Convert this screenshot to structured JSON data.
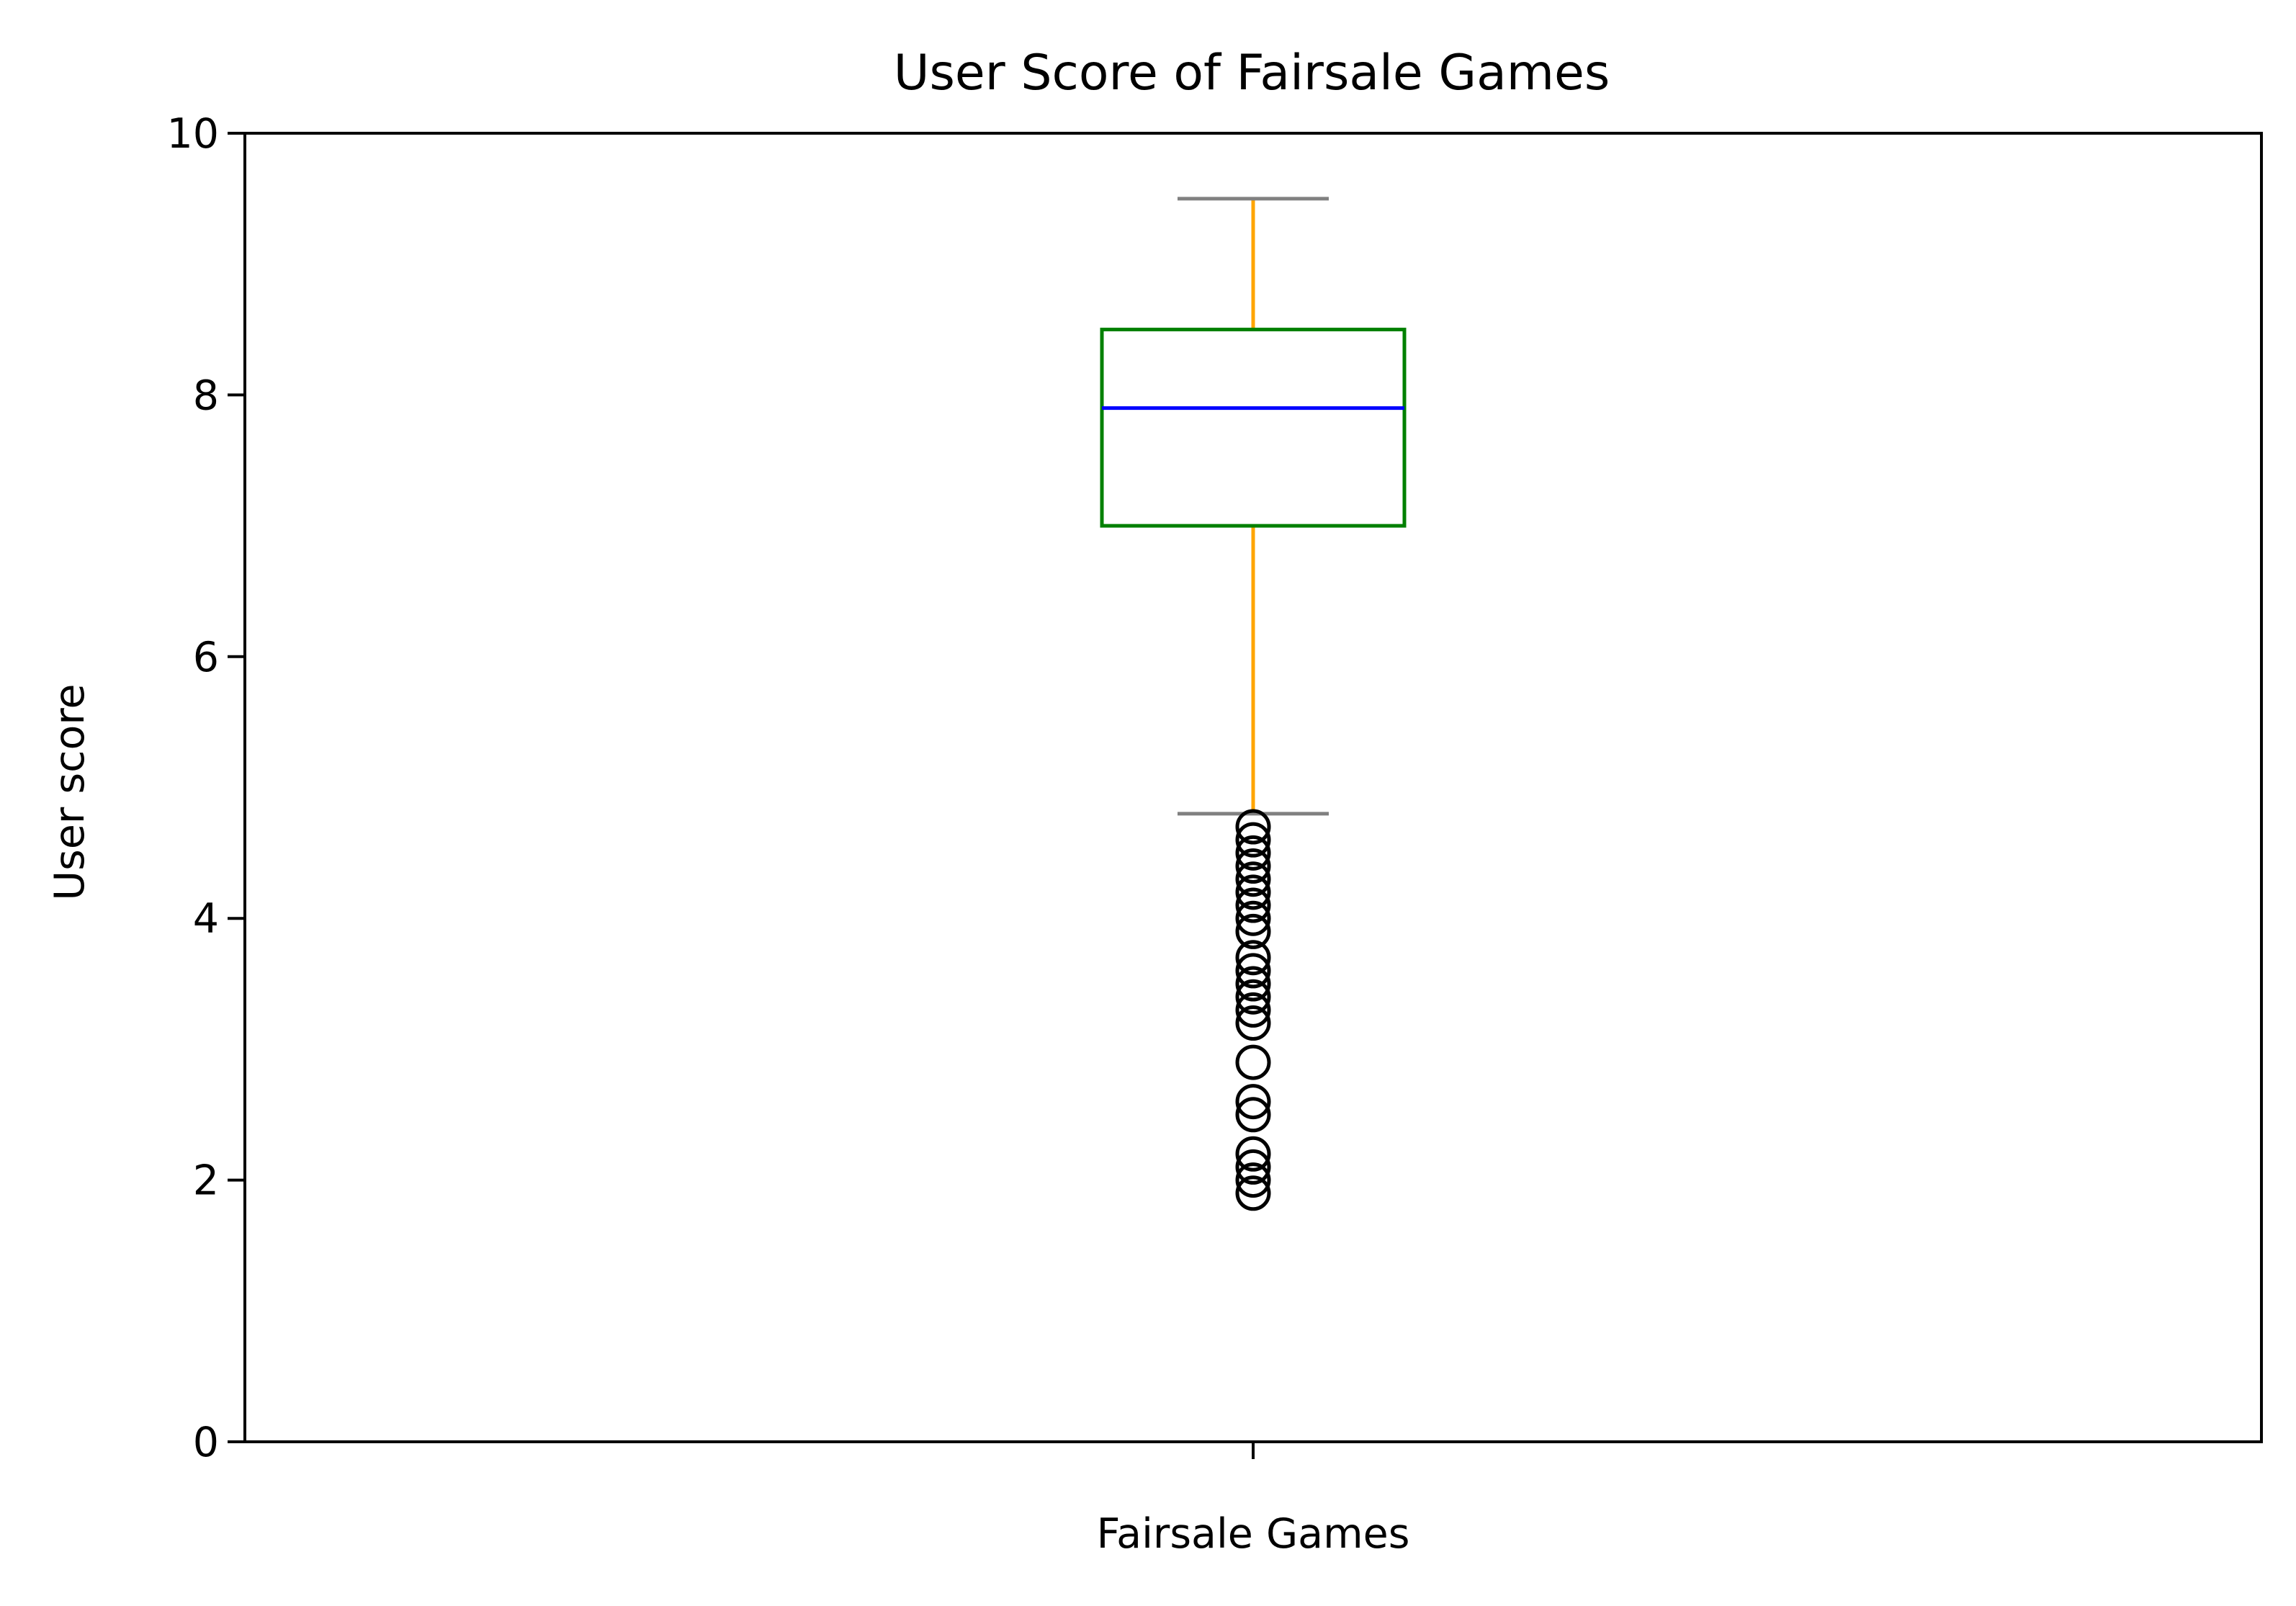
{
  "chart_data": {
    "type": "boxplot",
    "title": "User Score of Fairsale Games",
    "xlabel": "",
    "ylabel": "User score",
    "ylim": [
      0,
      10
    ],
    "yticks": [
      0,
      2,
      4,
      6,
      8,
      10
    ],
    "categories": [
      "Fairsale Games"
    ],
    "grid": false,
    "boxes": [
      {
        "category": "Fairsale Games",
        "whisker_low": 4.8,
        "q1": 7.0,
        "median": 7.9,
        "q3": 8.5,
        "whisker_high": 9.5,
        "outliers": [
          4.7,
          4.6,
          4.5,
          4.4,
          4.3,
          4.2,
          4.1,
          4.0,
          3.9,
          3.7,
          3.6,
          3.5,
          3.4,
          3.3,
          3.2,
          2.9,
          2.6,
          2.5,
          2.2,
          2.1,
          2.0,
          1.9
        ]
      }
    ],
    "colors": {
      "box": "#008000",
      "median": "#0000ff",
      "whisker": "#ffa500",
      "cap": "#808080",
      "flier": "#000000"
    }
  }
}
